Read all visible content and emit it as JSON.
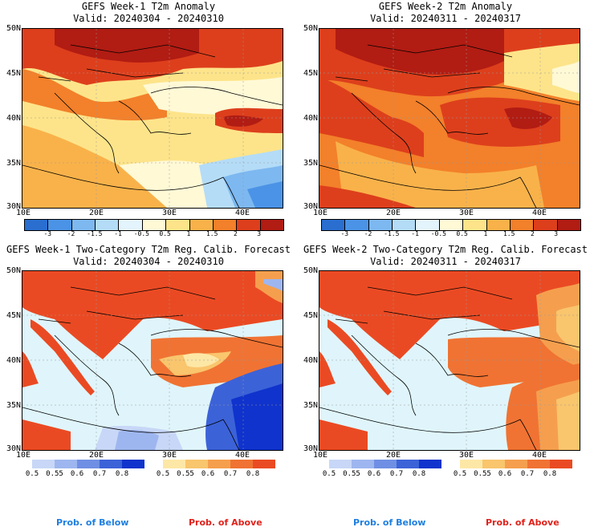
{
  "panels": [
    {
      "title": "GEFS Week-1 T2m Anomaly",
      "valid": "Valid: 20240304 - 20240310"
    },
    {
      "title": "GEFS Week-2 T2m Anomaly",
      "valid": "Valid: 20240311 - 20240317"
    },
    {
      "title": "GEFS Week-1 Two-Category T2m Reg. Calib. Forecast",
      "valid": "Valid: 20240304 - 20240310"
    },
    {
      "title": "GEFS Week-2 Two-Category T2m Reg. Calib. Forecast",
      "valid": "Valid: 20240311 - 20240317"
    }
  ],
  "lat_labels": [
    "50N",
    "45N",
    "40N",
    "35N",
    "30N"
  ],
  "lon_labels": [
    "10E",
    "20E",
    "30E",
    "40E"
  ],
  "anomaly_colorbar": {
    "ticks": [
      "-3",
      "-2",
      "-1.5",
      "-1",
      "-0.5",
      "0.5",
      "1",
      "1.5",
      "2",
      "3"
    ],
    "colors": [
      "#2a6fd0",
      "#4b93e6",
      "#7db8f0",
      "#b4dcf7",
      "#e4f4fc",
      "#fff9d6",
      "#fde48a",
      "#f9b24a",
      "#f3802a",
      "#dd3f1c",
      "#b11c13"
    ]
  },
  "below_colorbar": {
    "ticks": [
      "0.5",
      "0.55",
      "0.6",
      "0.7",
      "0.8"
    ],
    "colors": [
      "#c8d7f7",
      "#9eb6ef",
      "#6f8fe4",
      "#3c62d8",
      "#0f33cc"
    ]
  },
  "above_colorbar": {
    "ticks": [
      "0.5",
      "0.55",
      "0.6",
      "0.7",
      "0.8"
    ],
    "colors": [
      "#fde7a6",
      "#f9c56d",
      "#f59f4e",
      "#f07333",
      "#ea4a23"
    ]
  },
  "prob_below_label": "Prob. of Below",
  "prob_above_label": "Prob. of Above",
  "colors": {
    "sea": "#dff5fb",
    "prob_below_text": "#1e7fe0",
    "prob_above_text": "#e0221b"
  }
}
